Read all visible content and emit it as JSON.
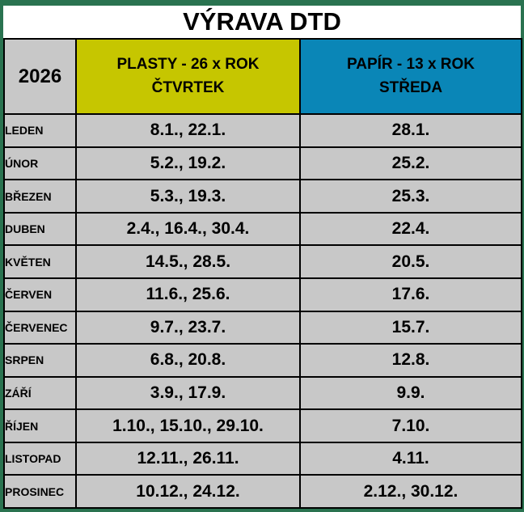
{
  "title": "VÝRAVA DTD",
  "year": "2026",
  "columns": {
    "plasty": {
      "line1": "PLASTY - 26 x ROK",
      "line2": "ČTVRTEK"
    },
    "papir": {
      "line1": "PAPÍR - 13 x ROK",
      "line2": "STŘEDA"
    }
  },
  "colors": {
    "frame": "#2a7350",
    "cell": "#c8c8c8",
    "plasty": "#c6c600",
    "papir": "#0a86b7"
  },
  "rows": [
    {
      "month": "LEDEN",
      "plasty": "8.1., 22.1.",
      "papir": "28.1."
    },
    {
      "month": "ÚNOR",
      "plasty": "5.2., 19.2.",
      "papir": "25.2."
    },
    {
      "month": "BŘEZEN",
      "plasty": "5.3., 19.3.",
      "papir": "25.3."
    },
    {
      "month": "DUBEN",
      "plasty": "2.4., 16.4., 30.4.",
      "papir": "22.4."
    },
    {
      "month": "KVĚTEN",
      "plasty": "14.5., 28.5.",
      "papir": "20.5."
    },
    {
      "month": "ČERVEN",
      "plasty": "11.6., 25.6.",
      "papir": "17.6."
    },
    {
      "month": "ČERVENEC",
      "plasty": "9.7., 23.7.",
      "papir": "15.7."
    },
    {
      "month": "SRPEN",
      "plasty": "6.8., 20.8.",
      "papir": "12.8."
    },
    {
      "month": "ZÁŘÍ",
      "plasty": "3.9., 17.9.",
      "papir": "9.9."
    },
    {
      "month": "ŘÍJEN",
      "plasty": "1.10., 15.10., 29.10.",
      "papir": "7.10."
    },
    {
      "month": "LISTOPAD",
      "plasty": "12.11., 26.11.",
      "papir": "4.11."
    },
    {
      "month": "PROSINEC",
      "plasty": "10.12., 24.12.",
      "papir": "2.12., 30.12."
    }
  ]
}
